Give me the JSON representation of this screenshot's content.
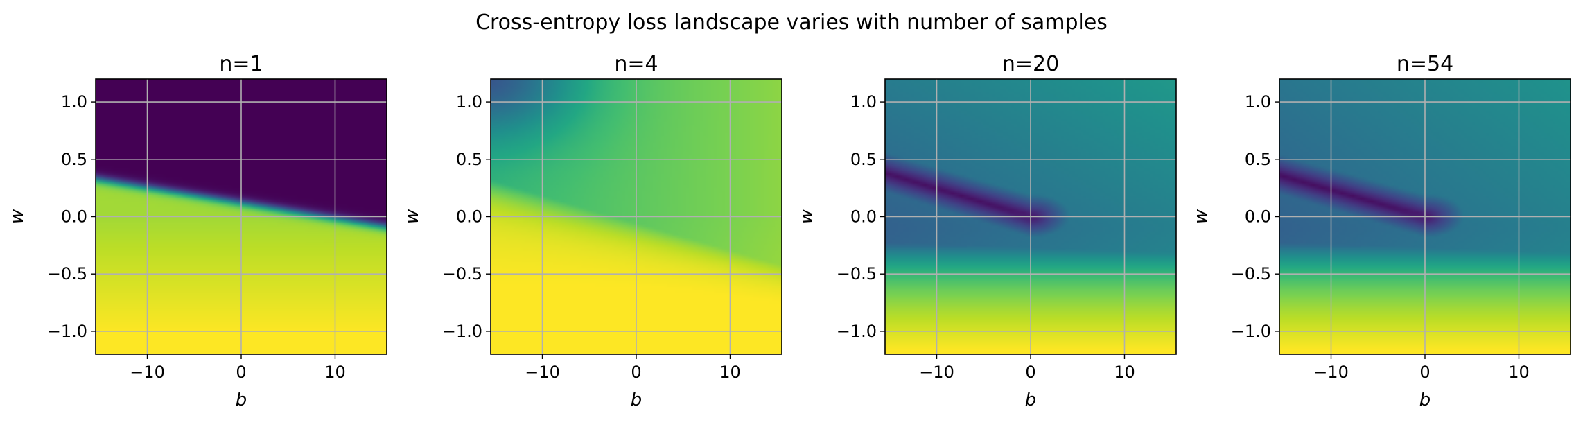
{
  "figure": {
    "suptitle": "Cross-entropy loss landscape varies with number of samples"
  },
  "chart_data": [
    {
      "type": "heatmap",
      "title": "n=1",
      "xlabel": "b",
      "ylabel": "w",
      "xlim": [
        -15.5,
        15.5
      ],
      "ylim": [
        -1.2,
        1.2
      ],
      "xticks": [
        -10,
        0,
        10
      ],
      "xtick_labels": [
        "−10",
        "0",
        "10"
      ],
      "yticks": [
        -1.0,
        -0.5,
        0.0,
        0.5,
        1.0
      ],
      "ytick_labels": [
        "−1.0",
        "−0.5",
        "0.0",
        "0.5",
        "1.0"
      ],
      "grid": true,
      "colormap": "viridis",
      "landscape": {
        "boundary_w_at_b0": 0.12,
        "boundary_slope": -0.0135,
        "low_region": "upper-left",
        "high_region": "bottom"
      }
    },
    {
      "type": "heatmap",
      "title": "n=4",
      "xlabel": "b",
      "ylabel": "w",
      "xlim": [
        -15.5,
        15.5
      ],
      "ylim": [
        -1.2,
        1.2
      ],
      "xticks": [
        -10,
        0,
        10
      ],
      "xtick_labels": [
        "−10",
        "0",
        "10"
      ],
      "yticks": [
        -1.0,
        -0.5,
        0.0,
        0.5,
        1.0
      ],
      "ytick_labels": [
        "−1.0",
        "−0.5",
        "0.0",
        "0.5",
        "1.0"
      ],
      "grid": true,
      "colormap": "viridis",
      "landscape": {
        "minimum": "top-left corner",
        "high_region": "bottom and right"
      }
    },
    {
      "type": "heatmap",
      "title": "n=20",
      "xlabel": "b",
      "ylabel": "w",
      "xlim": [
        -15.5,
        15.5
      ],
      "ylim": [
        -1.2,
        1.2
      ],
      "xticks": [
        -10,
        0,
        10
      ],
      "xtick_labels": [
        "−10",
        "0",
        "10"
      ],
      "yticks": [
        -1.0,
        -0.5,
        0.0,
        0.5,
        1.0
      ],
      "ytick_labels": [
        "−1.0",
        "−0.5",
        "0.0",
        "0.5",
        "1.0"
      ],
      "grid": true,
      "colormap": "viridis",
      "landscape": {
        "valley_from": [
          -15.5,
          0.38
        ],
        "valley_to": [
          0,
          0.0
        ],
        "high_region": "bottom"
      }
    },
    {
      "type": "heatmap",
      "title": "n=54",
      "xlabel": "b",
      "ylabel": "w",
      "xlim": [
        -15.5,
        15.5
      ],
      "ylim": [
        -1.2,
        1.2
      ],
      "xticks": [
        -10,
        0,
        10
      ],
      "xtick_labels": [
        "−10",
        "0",
        "10"
      ],
      "yticks": [
        -1.0,
        -0.5,
        0.0,
        0.5,
        1.0
      ],
      "ytick_labels": [
        "−1.0",
        "−0.5",
        "0.0",
        "0.5",
        "1.0"
      ],
      "grid": true,
      "colormap": "viridis",
      "landscape": {
        "valley_from": [
          -15.5,
          0.36
        ],
        "valley_to": [
          0,
          0.0
        ],
        "high_region": "bottom"
      }
    }
  ]
}
